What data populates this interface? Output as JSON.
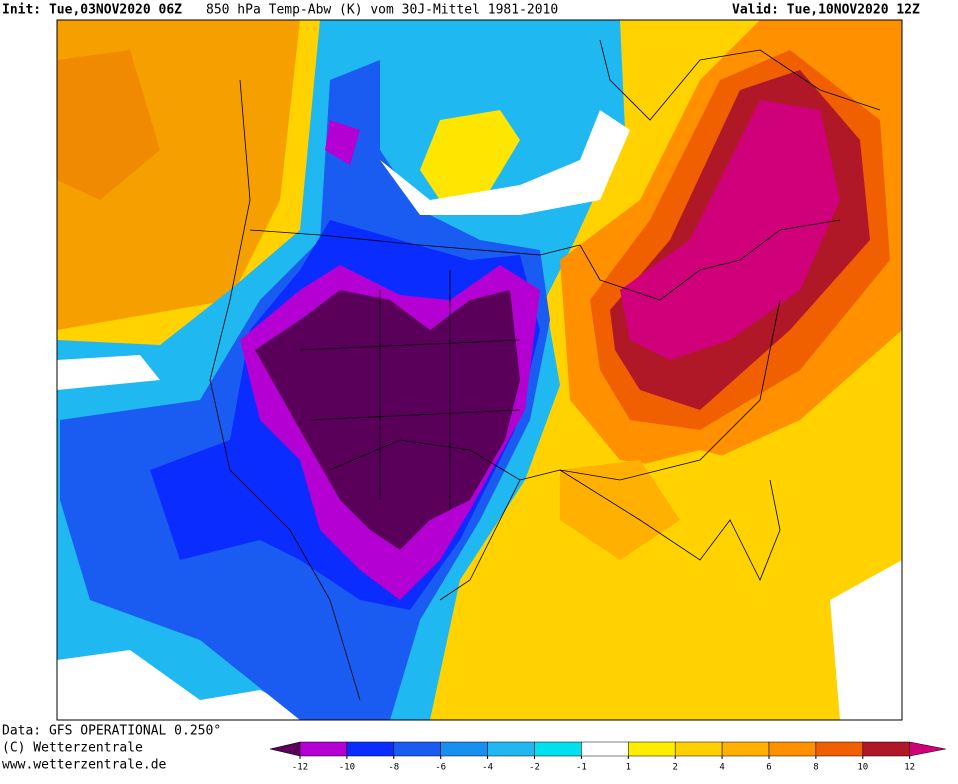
{
  "header": {
    "init": "Init: Tue,03NOV2020 06Z",
    "title": "850 hPa Temp-Abw (K) vom 30J-Mittel 1981-2010",
    "valid": "Valid: Tue,10NOV2020 12Z"
  },
  "footer": {
    "source": "Data: GFS OPERATIONAL 0.250°",
    "copyright": "(C) Wetterzentrale",
    "url": "www.wetterzentrale.de"
  },
  "colorbar": {
    "ticks": [
      -12,
      -10,
      -8,
      -6,
      -4,
      -2,
      -1,
      1,
      2,
      4,
      6,
      8,
      10,
      12
    ],
    "colors": [
      "#5a005a",
      "#b400d2",
      "#0a2cff",
      "#1a5cf2",
      "#1890f0",
      "#20b8f0",
      "#00e0f0",
      "#ffffff",
      "#ffee00",
      "#ffd000",
      "#ffb000",
      "#ff9000",
      "#f06000",
      "#b01828",
      "#d0007a"
    ]
  }
}
